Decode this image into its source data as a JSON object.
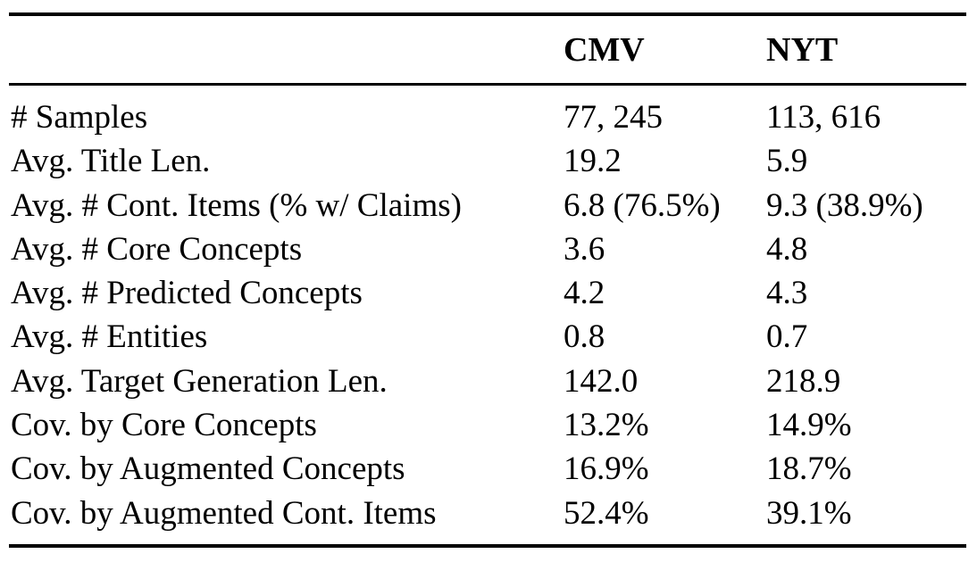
{
  "table": {
    "columns": [
      "",
      "CMV",
      "NYT"
    ],
    "rows": [
      {
        "label": "# Samples",
        "cmv": "77, 245",
        "nyt": "113, 616"
      },
      {
        "label": "Avg. Title Len.",
        "cmv": "19.2",
        "nyt": "5.9"
      },
      {
        "label": "Avg. # Cont. Items (% w/ Claims)",
        "cmv": "6.8 (76.5%)",
        "nyt": "9.3 (38.9%)"
      },
      {
        "label": "Avg. # Core Concepts",
        "cmv": "3.6",
        "nyt": "4.8"
      },
      {
        "label": "Avg. # Predicted Concepts",
        "cmv": "4.2",
        "nyt": "4.3"
      },
      {
        "label": "Avg. # Entities",
        "cmv": "0.8",
        "nyt": "0.7"
      },
      {
        "label": "Avg. Target Generation Len.",
        "cmv": "142.0",
        "nyt": "218.9"
      },
      {
        "label": "Cov. by Core Concepts",
        "cmv": "13.2%",
        "nyt": "14.9%"
      },
      {
        "label": "Cov. by Augmented Concepts",
        "cmv": "16.9%",
        "nyt": "18.7%"
      },
      {
        "label": "Cov. by Augmented Cont. Items",
        "cmv": "52.4%",
        "nyt": "39.1%"
      }
    ]
  }
}
